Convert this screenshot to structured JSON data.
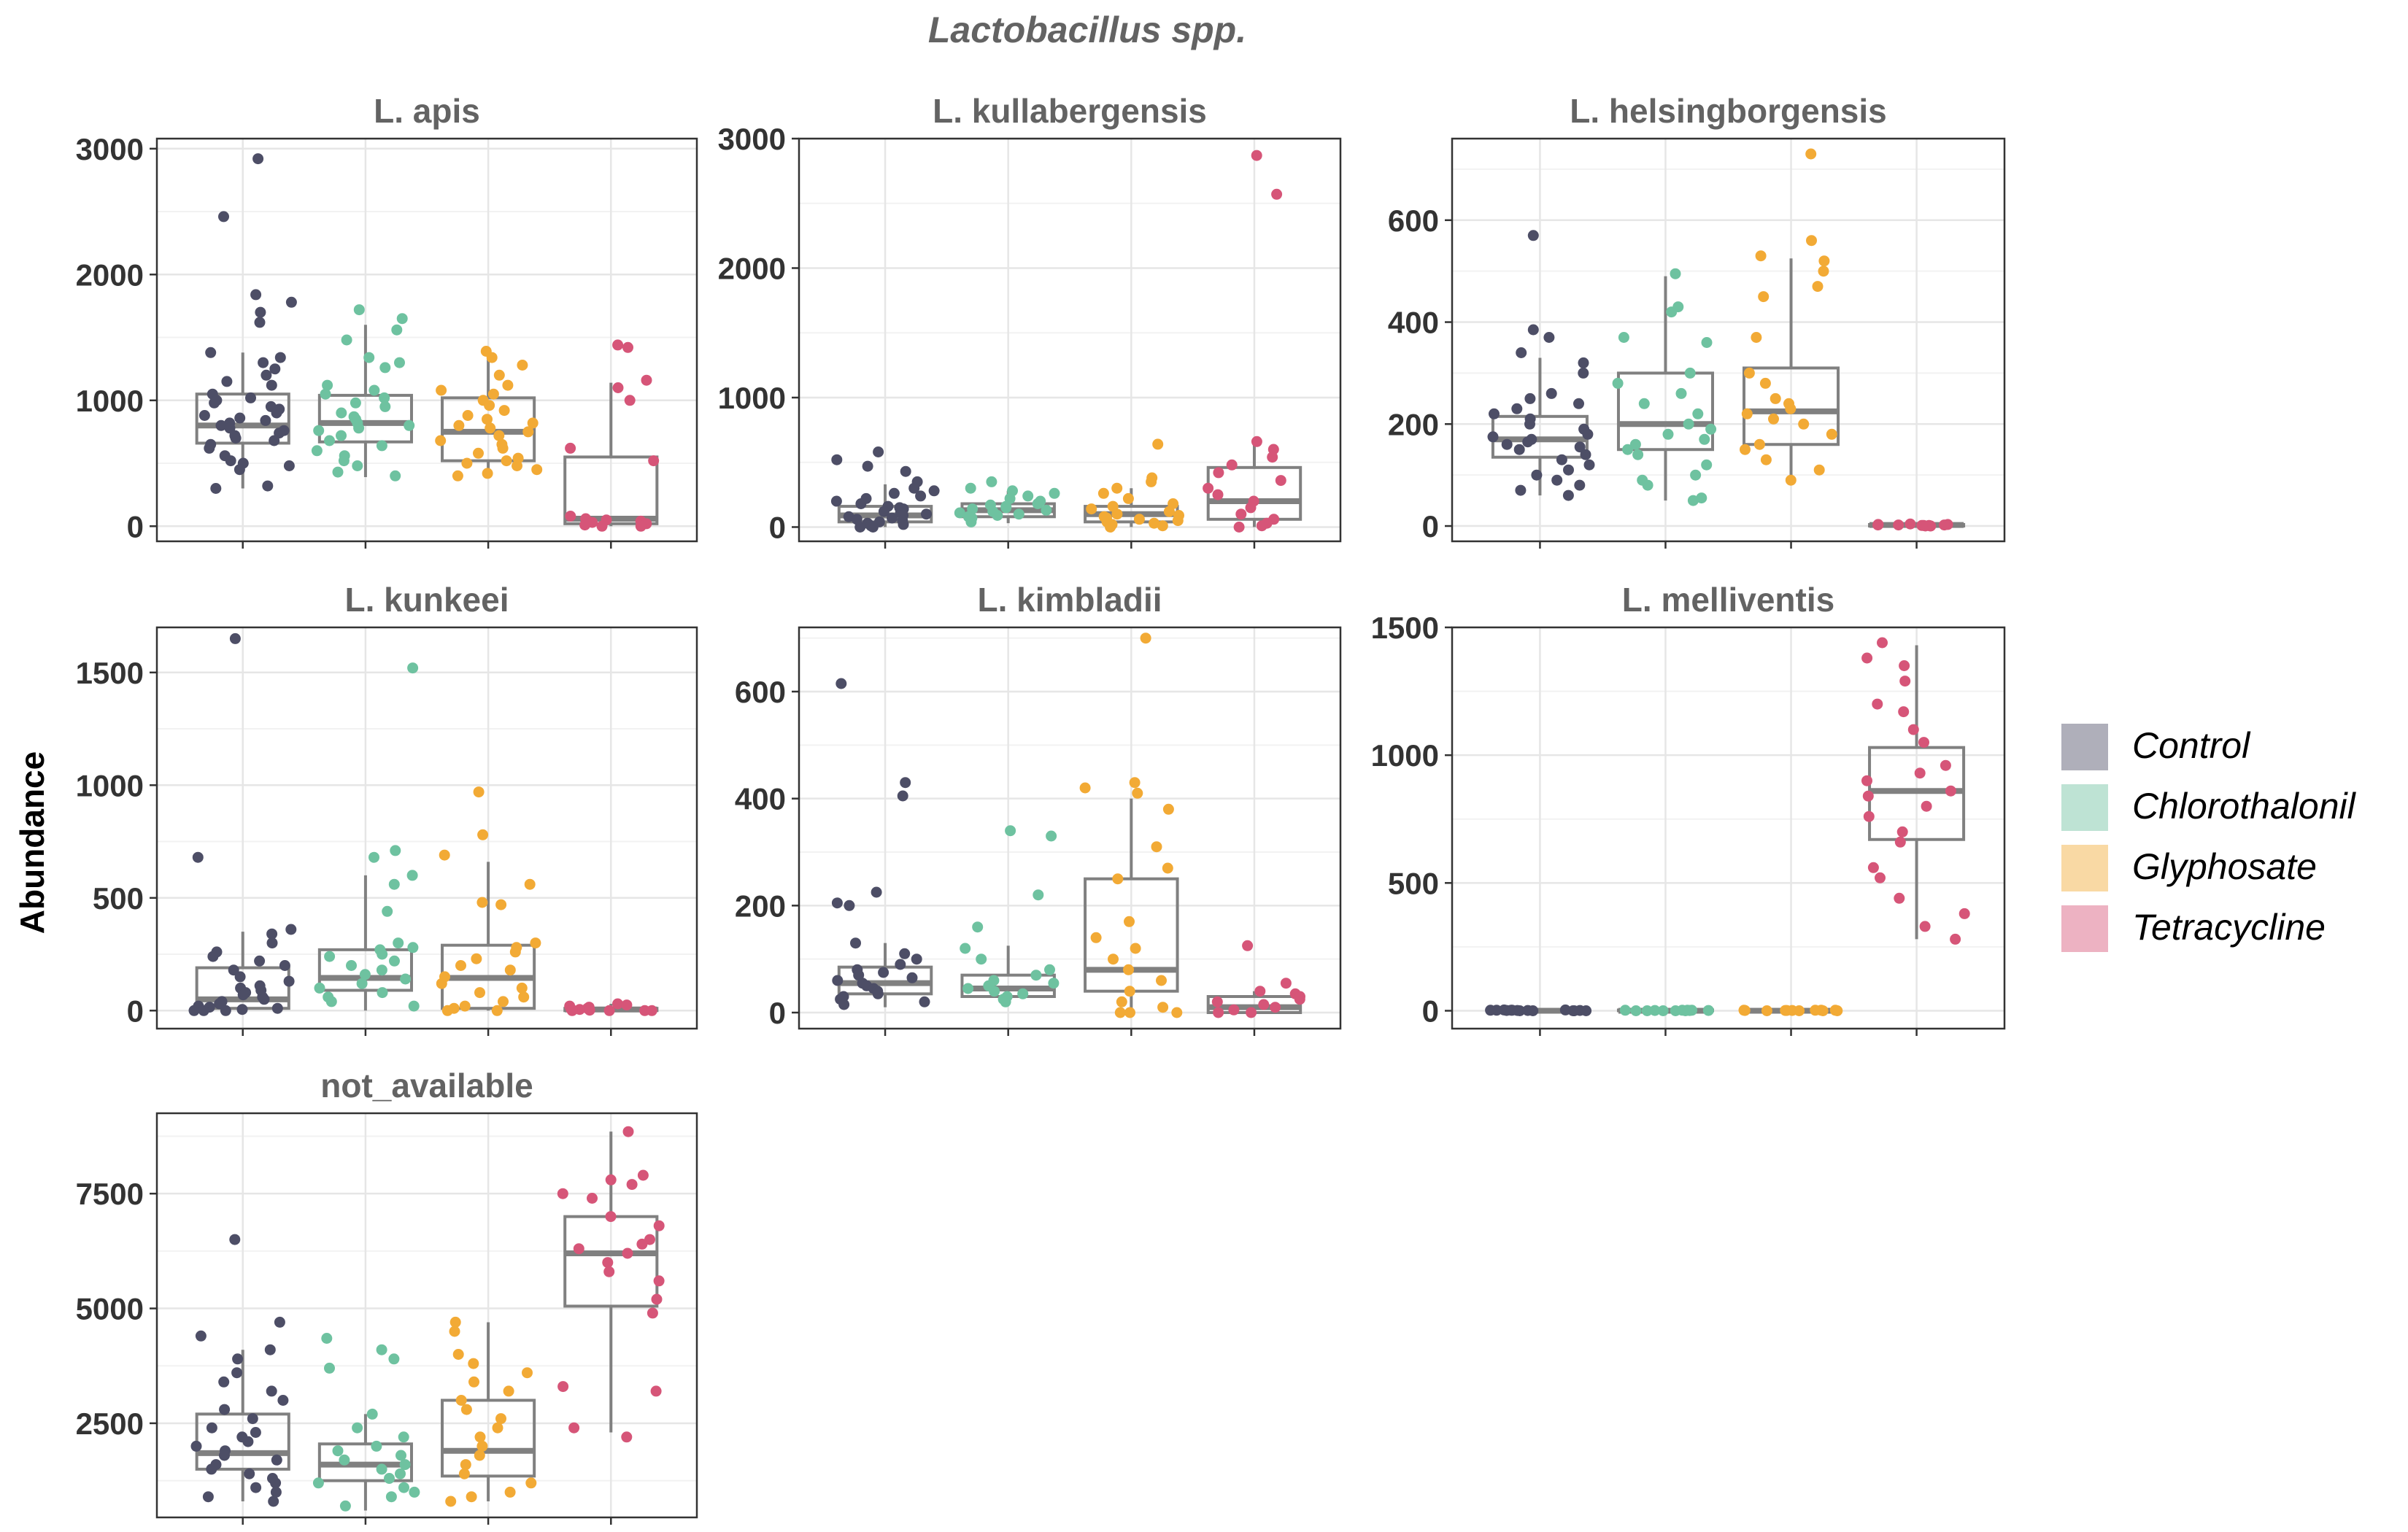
{
  "figure": {
    "title": "Lactobacillus spp.",
    "ylabel": "Abundance"
  },
  "legend": {
    "entries": [
      {
        "label": "Control",
        "color": "#4d4e66"
      },
      {
        "label": "Chlorothalonil",
        "color": "#6ec2a0"
      },
      {
        "label": "Glyphosate",
        "color": "#f2aa35"
      },
      {
        "label": "Tetracycline",
        "color": "#d65578"
      }
    ]
  },
  "chart_data": [
    {
      "type": "box",
      "title": "L. apis",
      "ylim": [
        -120,
        3080
      ],
      "yticks": [
        0,
        1000,
        2000,
        3000
      ],
      "groups": [
        {
          "name": "Control",
          "box": {
            "whisker_low": 300,
            "q1": 660,
            "median": 800,
            "q3": 1050,
            "whisker_high": 1380
          },
          "points": [
            2920,
            2460,
            1840,
            1780,
            1700,
            1620,
            1380,
            1340,
            1300,
            1250,
            1200,
            1150,
            1120,
            1050,
            1020,
            1000,
            980,
            950,
            930,
            900,
            880,
            860,
            840,
            820,
            800,
            780,
            760,
            740,
            720,
            700,
            680,
            650,
            620,
            560,
            520,
            500,
            480,
            450,
            320,
            300
          ]
        },
        {
          "name": "Chlorothalonil",
          "box": {
            "whisker_low": 390,
            "q1": 670,
            "median": 820,
            "q3": 1040,
            "whisker_high": 1600
          },
          "points": [
            1720,
            1650,
            1560,
            1480,
            1340,
            1300,
            1260,
            1120,
            1080,
            1050,
            1020,
            980,
            950,
            900,
            870,
            850,
            820,
            800,
            780,
            760,
            720,
            680,
            640,
            600,
            560,
            520,
            480,
            430,
            400
          ]
        },
        {
          "name": "Glyphosate",
          "box": {
            "whisker_low": 380,
            "q1": 520,
            "median": 750,
            "q3": 1020,
            "whisker_high": 1380
          },
          "points": [
            1390,
            1340,
            1280,
            1200,
            1120,
            1080,
            1050,
            1000,
            960,
            920,
            880,
            850,
            820,
            800,
            780,
            750,
            720,
            680,
            650,
            620,
            580,
            540,
            520,
            500,
            480,
            450,
            420,
            400
          ]
        },
        {
          "name": "Tetracycline",
          "box": {
            "whisker_low": 0,
            "q1": 20,
            "median": 60,
            "q3": 550,
            "whisker_high": 1140
          },
          "points": [
            1440,
            1420,
            1160,
            1100,
            1000,
            620,
            520,
            80,
            60,
            50,
            40,
            30,
            20,
            10,
            0,
            0
          ]
        }
      ]
    },
    {
      "type": "box",
      "title": "L. kullabergensis",
      "ylim": [
        -110,
        3000
      ],
      "yticks": [
        0,
        1000,
        2000,
        3000
      ],
      "groups": [
        {
          "name": "Control",
          "box": {
            "whisker_low": 0,
            "q1": 40,
            "median": 90,
            "q3": 160,
            "whisker_high": 330
          },
          "points": [
            580,
            520,
            470,
            430,
            350,
            300,
            280,
            260,
            240,
            220,
            200,
            180,
            160,
            150,
            140,
            130,
            120,
            110,
            100,
            90,
            80,
            70,
            60,
            50,
            40,
            30,
            20,
            10,
            0,
            0
          ]
        },
        {
          "name": "Chlorothalonil",
          "box": {
            "whisker_low": 30,
            "q1": 80,
            "median": 130,
            "q3": 180,
            "whisker_high": 280
          },
          "points": [
            350,
            300,
            280,
            260,
            240,
            220,
            200,
            180,
            170,
            160,
            150,
            140,
            130,
            120,
            110,
            100,
            90,
            80,
            70,
            60,
            40
          ]
        },
        {
          "name": "Glyphosate",
          "box": {
            "whisker_low": 0,
            "q1": 40,
            "median": 100,
            "q3": 160,
            "whisker_high": 300
          },
          "points": [
            640,
            380,
            350,
            300,
            260,
            220,
            180,
            160,
            140,
            120,
            100,
            90,
            80,
            70,
            60,
            50,
            40,
            30,
            20,
            10,
            0
          ]
        },
        {
          "name": "Tetracycline",
          "box": {
            "whisker_low": 0,
            "q1": 60,
            "median": 200,
            "q3": 460,
            "whisker_high": 640
          },
          "points": [
            2870,
            2570,
            660,
            600,
            540,
            480,
            420,
            360,
            300,
            250,
            200,
            150,
            100,
            60,
            30,
            10,
            0
          ]
        }
      ]
    },
    {
      "type": "box",
      "title": "L. helsingborgensis",
      "ylim": [
        -30,
        760
      ],
      "yticks": [
        0,
        200,
        400,
        600
      ],
      "groups": [
        {
          "name": "Control",
          "box": {
            "whisker_low": 60,
            "q1": 135,
            "median": 170,
            "q3": 215,
            "whisker_high": 330
          },
          "points": [
            570,
            385,
            370,
            340,
            320,
            300,
            260,
            250,
            240,
            230,
            220,
            210,
            200,
            190,
            180,
            175,
            170,
            165,
            160,
            155,
            150,
            140,
            130,
            120,
            110,
            100,
            90,
            80,
            70,
            60
          ]
        },
        {
          "name": "Chlorothalonil",
          "box": {
            "whisker_low": 50,
            "q1": 150,
            "median": 200,
            "q3": 300,
            "whisker_high": 490
          },
          "points": [
            495,
            430,
            420,
            370,
            360,
            300,
            280,
            260,
            240,
            220,
            200,
            190,
            180,
            170,
            160,
            150,
            140,
            120,
            100,
            90,
            80,
            55,
            50
          ]
        },
        {
          "name": "Glyphosate",
          "box": {
            "whisker_low": 90,
            "q1": 160,
            "median": 225,
            "q3": 310,
            "whisker_high": 525
          },
          "points": [
            730,
            560,
            530,
            520,
            500,
            470,
            450,
            370,
            300,
            280,
            250,
            240,
            230,
            220,
            210,
            200,
            180,
            160,
            150,
            130,
            110,
            90
          ]
        },
        {
          "name": "Tetracycline",
          "box": {
            "whisker_low": 0,
            "q1": 0,
            "median": 2,
            "q3": 3,
            "whisker_high": 5
          },
          "points": [
            0,
            1,
            2,
            3,
            4,
            0,
            1,
            2,
            3,
            0,
            1,
            2
          ]
        }
      ]
    },
    {
      "type": "box",
      "title": "L. kunkeei",
      "ylim": [
        -80,
        1700
      ],
      "yticks": [
        0,
        500,
        1000,
        1500
      ],
      "groups": [
        {
          "name": "Control",
          "box": {
            "whisker_low": 0,
            "q1": 10,
            "median": 50,
            "q3": 190,
            "whisker_high": 350
          },
          "points": [
            1650,
            680,
            360,
            340,
            300,
            260,
            240,
            220,
            200,
            180,
            150,
            130,
            110,
            100,
            90,
            80,
            70,
            60,
            50,
            40,
            30,
            20,
            15,
            10,
            5,
            0,
            0,
            0
          ]
        },
        {
          "name": "Chlorothalonil",
          "box": {
            "whisker_low": 0,
            "q1": 90,
            "median": 145,
            "q3": 270,
            "whisker_high": 600
          },
          "points": [
            1520,
            710,
            680,
            600,
            560,
            440,
            300,
            280,
            270,
            250,
            240,
            220,
            200,
            180,
            160,
            140,
            120,
            100,
            80,
            60,
            40,
            20
          ]
        },
        {
          "name": "Glyphosate",
          "box": {
            "whisker_low": 0,
            "q1": 10,
            "median": 145,
            "q3": 290,
            "whisker_high": 660
          },
          "points": [
            970,
            780,
            690,
            560,
            480,
            470,
            300,
            280,
            260,
            230,
            200,
            180,
            150,
            120,
            100,
            80,
            60,
            40,
            20,
            10,
            0,
            0
          ]
        },
        {
          "name": "Tetracycline",
          "box": {
            "whisker_low": 0,
            "q1": 0,
            "median": 5,
            "q3": 10,
            "whisker_high": 30
          },
          "points": [
            30,
            25,
            20,
            15,
            10,
            8,
            5,
            3,
            2,
            0,
            0,
            0,
            0
          ]
        }
      ]
    },
    {
      "type": "box",
      "title": "L. kimbladii",
      "ylim": [
        -30,
        720
      ],
      "yticks": [
        0,
        200,
        400,
        600
      ],
      "groups": [
        {
          "name": "Control",
          "box": {
            "whisker_low": 10,
            "q1": 35,
            "median": 55,
            "q3": 85,
            "whisker_high": 130
          },
          "points": [
            615,
            430,
            405,
            225,
            205,
            200,
            130,
            110,
            100,
            90,
            80,
            75,
            70,
            65,
            60,
            55,
            50,
            45,
            40,
            35,
            30,
            25,
            20,
            15
          ]
        },
        {
          "name": "Chlorothalonil",
          "box": {
            "whisker_low": 15,
            "q1": 30,
            "median": 45,
            "q3": 70,
            "whisker_high": 125
          },
          "points": [
            340,
            330,
            220,
            160,
            120,
            100,
            80,
            70,
            60,
            55,
            50,
            45,
            40,
            35,
            30,
            25,
            20
          ]
        },
        {
          "name": "Glyphosate",
          "box": {
            "whisker_low": 0,
            "q1": 40,
            "median": 80,
            "q3": 250,
            "whisker_high": 400
          },
          "points": [
            700,
            430,
            420,
            410,
            380,
            310,
            270,
            250,
            170,
            140,
            120,
            100,
            80,
            60,
            40,
            20,
            10,
            0,
            0,
            0
          ]
        },
        {
          "name": "Tetracycline",
          "box": {
            "whisker_low": 0,
            "q1": 0,
            "median": 10,
            "q3": 30,
            "whisker_high": 40
          },
          "points": [
            125,
            55,
            40,
            35,
            30,
            25,
            20,
            15,
            10,
            5,
            0,
            0
          ]
        }
      ]
    },
    {
      "type": "box",
      "title": "L. melliventis",
      "ylim": [
        -70,
        1500
      ],
      "yticks": [
        0,
        500,
        1000,
        1500
      ],
      "groups": [
        {
          "name": "Control",
          "box": {
            "whisker_low": 0,
            "q1": 0,
            "median": 0,
            "q3": 3,
            "whisker_high": 5
          },
          "points": [
            0,
            1,
            2,
            3,
            0,
            1,
            2,
            3,
            0,
            1,
            2,
            0,
            1,
            2,
            0
          ]
        },
        {
          "name": "Chlorothalonil",
          "box": {
            "whisker_low": 0,
            "q1": 0,
            "median": 0,
            "q3": 3,
            "whisker_high": 5
          },
          "points": [
            0,
            1,
            2,
            0,
            1,
            2,
            0,
            1,
            2,
            0,
            1,
            2,
            0
          ]
        },
        {
          "name": "Glyphosate",
          "box": {
            "whisker_low": 0,
            "q1": 0,
            "median": 0,
            "q3": 3,
            "whisker_high": 5
          },
          "points": [
            0,
            1,
            2,
            0,
            1,
            2,
            0,
            1,
            2,
            0,
            1,
            2
          ]
        },
        {
          "name": "Tetracycline",
          "box": {
            "whisker_low": 280,
            "q1": 670,
            "median": 860,
            "q3": 1030,
            "whisker_high": 1430
          },
          "points": [
            1440,
            1380,
            1350,
            1290,
            1200,
            1170,
            1100,
            1050,
            960,
            930,
            900,
            860,
            840,
            800,
            760,
            700,
            660,
            560,
            520,
            440,
            380,
            330,
            280
          ]
        }
      ]
    },
    {
      "type": "box",
      "title": "not_available",
      "ylim": [
        450,
        9250
      ],
      "yticks": [
        2500,
        5000,
        7500
      ],
      "groups": [
        {
          "name": "Control",
          "box": {
            "whisker_low": 800,
            "q1": 1500,
            "median": 1850,
            "q3": 2700,
            "whisker_high": 4100
          },
          "points": [
            6500,
            4700,
            4400,
            4100,
            3900,
            3600,
            3400,
            3200,
            3000,
            2800,
            2600,
            2400,
            2300,
            2200,
            2100,
            2000,
            1900,
            1800,
            1700,
            1600,
            1500,
            1400,
            1300,
            1200,
            1100,
            1000,
            900,
            800
          ]
        },
        {
          "name": "Chlorothalonil",
          "box": {
            "whisker_low": 600,
            "q1": 1250,
            "median": 1600,
            "q3": 2050,
            "whisker_high": 2700
          },
          "points": [
            4350,
            4100,
            3900,
            3700,
            2700,
            2400,
            2200,
            2000,
            1900,
            1800,
            1700,
            1600,
            1500,
            1400,
            1300,
            1200,
            1100,
            1000,
            900,
            700
          ]
        },
        {
          "name": "Glyphosate",
          "box": {
            "whisker_low": 800,
            "q1": 1350,
            "median": 1900,
            "q3": 3000,
            "whisker_high": 4700
          },
          "points": [
            4700,
            4500,
            4000,
            3800,
            3600,
            3400,
            3200,
            3000,
            2800,
            2600,
            2400,
            2200,
            2000,
            1800,
            1600,
            1400,
            1200,
            1000,
            900,
            800
          ]
        },
        {
          "name": "Tetracycline",
          "box": {
            "whisker_low": 2300,
            "q1": 5050,
            "median": 6200,
            "q3": 7000,
            "whisker_high": 8850
          },
          "points": [
            8850,
            7900,
            7800,
            7700,
            7500,
            7400,
            7000,
            6800,
            6500,
            6400,
            6300,
            6200,
            6000,
            5800,
            5600,
            5200,
            4900,
            3300,
            3200,
            2400,
            2200
          ]
        }
      ]
    }
  ]
}
